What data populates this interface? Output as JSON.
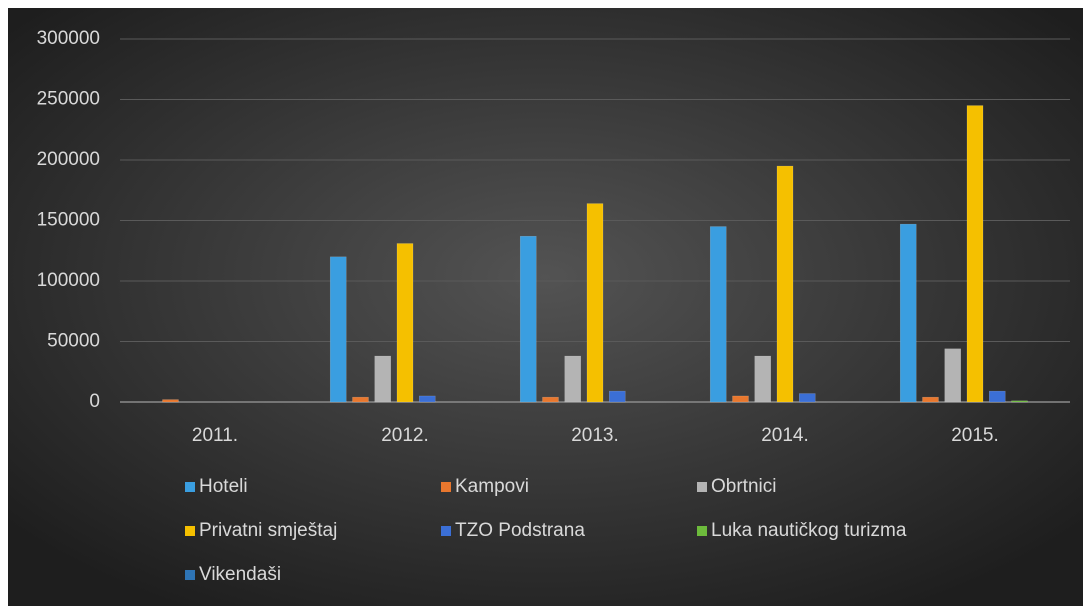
{
  "chart_data": {
    "type": "bar",
    "categories": [
      "2011.",
      "2012.",
      "2013.",
      "2014.",
      "2015."
    ],
    "series": [
      {
        "name": "Hoteli",
        "color": "#3a9ee0",
        "values": [
          0,
          120000,
          137000,
          145000,
          147000
        ]
      },
      {
        "name": "Kampovi",
        "color": "#e8772e",
        "values": [
          2000,
          4000,
          4000,
          5000,
          4000
        ]
      },
      {
        "name": "Obrtnici",
        "color": "#b4b4b4",
        "values": [
          0,
          38000,
          38000,
          38000,
          44000
        ]
      },
      {
        "name": "Privatni smještaj",
        "color": "#f5c000",
        "values": [
          0,
          131000,
          164000,
          195000,
          245000
        ]
      },
      {
        "name": "TZO Podstrana",
        "color": "#3b6fd6",
        "values": [
          0,
          5000,
          9000,
          7000,
          9000
        ]
      },
      {
        "name": "Luka nautičkog turizma",
        "color": "#6dbb3c",
        "values": [
          0,
          0,
          0,
          0,
          1000
        ]
      },
      {
        "name": "Vikendaši",
        "color": "#2e74b5",
        "values": [
          0,
          0,
          0,
          0,
          0
        ]
      }
    ],
    "ylim": [
      0,
      300000
    ],
    "yticks": [
      0,
      50000,
      100000,
      150000,
      200000,
      250000,
      300000
    ],
    "grid": true,
    "legend": "bottom"
  }
}
